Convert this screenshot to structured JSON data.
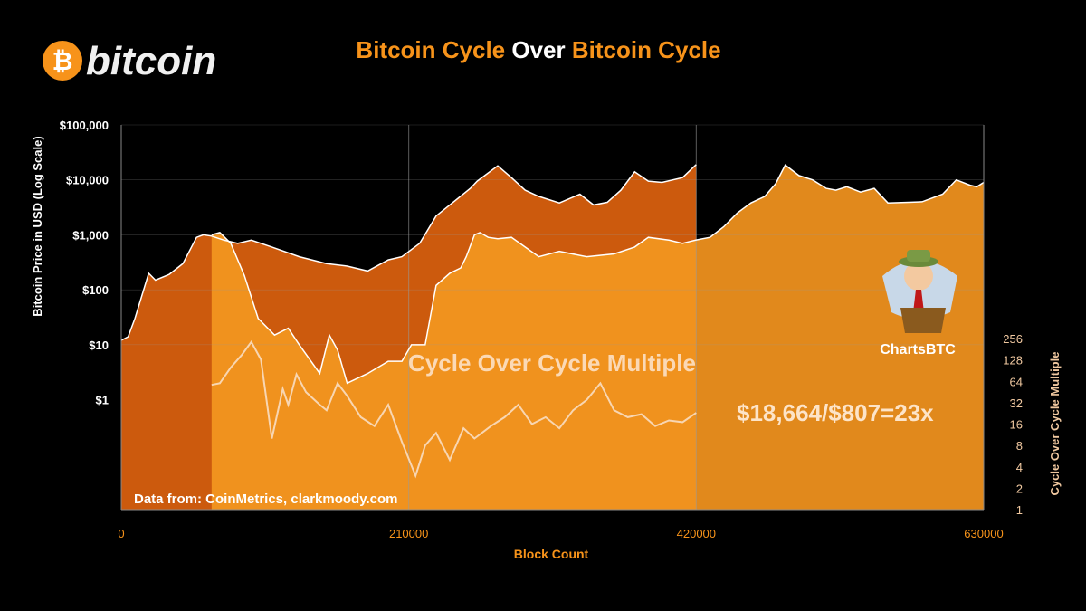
{
  "logo": {
    "symbol": "₿",
    "wordmark": "bitcoin",
    "icon": "bitcoin-logo-icon"
  },
  "title": {
    "part1": "Bitcoin Cycle ",
    "part2": "Over",
    "part3": " Bitcoin Cycle"
  },
  "annotations": {
    "multiple_label": "Cycle Over Cycle Multiple",
    "ratio": "$18,664/$807=23x",
    "source": "Data from:  CoinMetrics, clarkmoody.com",
    "mascot": "ChartsBTC",
    "mascot_icon": "cartoon-man-icon"
  },
  "colors": {
    "background": "#000000",
    "cycle1_fill": "#cc5a0d",
    "cycle2_fill": "#f0921e",
    "cycle3_fill": "#e88a1c",
    "multiple_line": "#f8d6b2",
    "accent": "#f7931a"
  },
  "chart_data": {
    "type": "area",
    "title": "Bitcoin Cycle Over Bitcoin Cycle",
    "xlabel": "Block Count",
    "ylabel": "Bitcoin Price in USD (Log Scale)",
    "y2label": "Cycle Over Cycle Multiple",
    "xlim": [
      0,
      630000
    ],
    "ylim": [
      0.01,
      100000
    ],
    "y2lim": [
      1,
      256
    ],
    "yscale": "log",
    "x_ticks": [
      "0",
      "210000",
      "420000",
      "630000"
    ],
    "y_ticks": [
      "$100,000",
      "$10,000",
      "$1,000",
      "$100",
      "$10",
      "$1"
    ],
    "y2_ticks": [
      "256",
      "128",
      "64",
      "32",
      "16",
      "8",
      "4",
      "2",
      "1"
    ],
    "grid": true,
    "series": [
      {
        "x": [
          0,
          5000,
          10000,
          20000,
          25000,
          35000,
          45000,
          55000,
          60000,
          66000,
          75000,
          85000,
          95000,
          110000,
          130000,
          150000,
          165000,
          180000,
          195000,
          205000,
          218000,
          230000,
          240000,
          255000,
          260000,
          275000,
          285000,
          295000,
          305000,
          320000,
          335000,
          345000,
          355000,
          365000,
          375000,
          385000,
          395000,
          410000,
          420000
        ],
        "values": [
          12,
          14,
          30,
          200,
          150,
          190,
          300,
          900,
          1000,
          950,
          800,
          700,
          800,
          600,
          400,
          300,
          270,
          220,
          350,
          400,
          700,
          2200,
          3500,
          7000,
          9500,
          18000,
          11000,
          6500,
          5000,
          3800,
          5500,
          3500,
          3900,
          6500,
          14000,
          9500,
          9000,
          11000,
          19000
        ]
      },
      {
        "x": [
          66000,
          72000,
          80000,
          90000,
          100000,
          112000,
          122000,
          130000,
          145000,
          152000,
          158000,
          165000,
          180000,
          195000,
          205000,
          212000,
          222000,
          230000,
          240000,
          248000,
          252000,
          258000,
          262000,
          268000,
          275000,
          285000,
          295000,
          305000,
          320000,
          340000,
          360000,
          375000,
          385000,
          400000,
          410000,
          420000,
          430000,
          440000,
          450000,
          460000,
          470000,
          478000,
          485000,
          495000,
          505000,
          515000,
          522000,
          530000,
          540000,
          550000,
          560000,
          575000,
          585000,
          600000,
          610000,
          620000,
          625000,
          630000
        ],
        "values": [
          1000,
          1100,
          700,
          180,
          30,
          15,
          20,
          10,
          3,
          15,
          8,
          2,
          3,
          5,
          5,
          10,
          10,
          120,
          200,
          250,
          400,
          1000,
          1100,
          900,
          850,
          900,
          600,
          400,
          500,
          400,
          450,
          600,
          900,
          800,
          700,
          807,
          900,
          1400,
          2500,
          3800,
          5000,
          8500,
          18664,
          12000,
          10000,
          7000,
          6500,
          7500,
          6000,
          7000,
          3800,
          3900,
          4000,
          5500,
          10000,
          8000,
          7500,
          9000
        ]
      },
      {
        "x": [
          66000,
          72000,
          80000,
          88000,
          95000,
          102000,
          110000,
          118000,
          122000,
          128000,
          135000,
          145000,
          150000,
          158000,
          165000,
          175000,
          185000,
          195000,
          205000,
          215000,
          222000,
          230000,
          240000,
          250000,
          258000,
          270000,
          280000,
          290000,
          300000,
          310000,
          320000,
          330000,
          340000,
          350000,
          360000,
          370000,
          380000,
          390000,
          400000,
          410000,
          420000
        ],
        "values": [
          57,
          60,
          100,
          150,
          230,
          130,
          10,
          50,
          30,
          80,
          45,
          30,
          25,
          60,
          40,
          20,
          15,
          30,
          9,
          3,
          8,
          12,
          5,
          14,
          10,
          15,
          20,
          30,
          16,
          20,
          14,
          25,
          35,
          60,
          25,
          20,
          22,
          15,
          18,
          17,
          23
        ]
      }
    ]
  }
}
